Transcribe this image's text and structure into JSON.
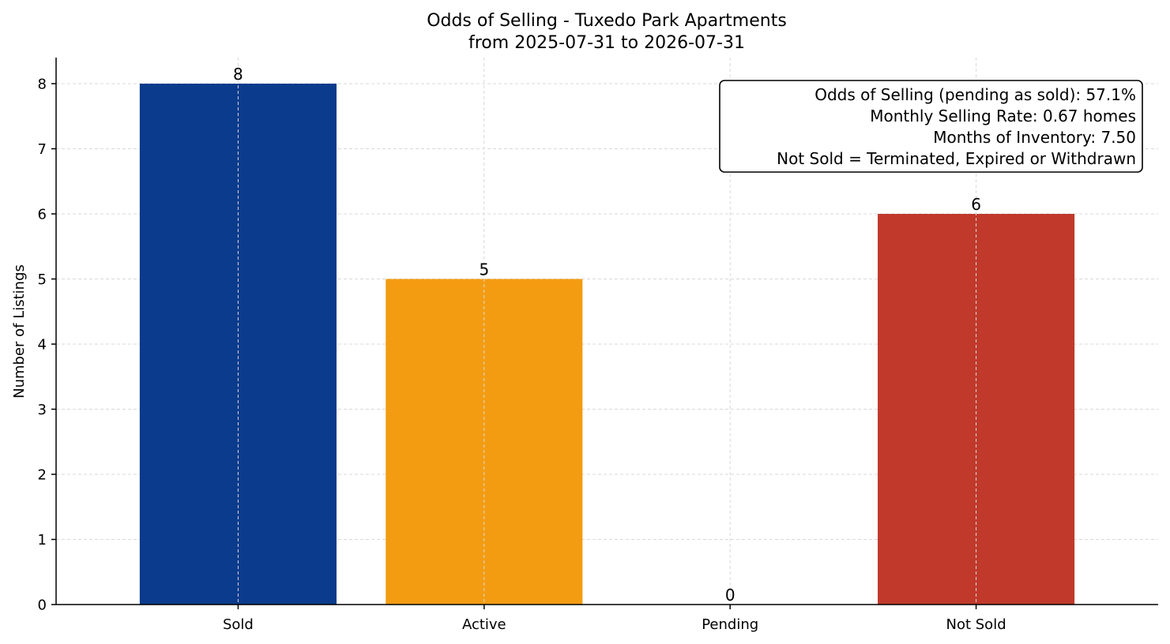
{
  "chart_data": {
    "type": "bar",
    "title": "Odds of Selling - Tuxedo Park Apartments",
    "subtitle": "from 2025-07-31 to 2026-07-31",
    "xlabel": "",
    "ylabel": "Number of Listings",
    "categories": [
      "Sold",
      "Active",
      "Pending",
      "Not Sold"
    ],
    "values": [
      8,
      5,
      0,
      6
    ],
    "data_labels": [
      "8",
      "5",
      "0",
      "6"
    ],
    "colors": [
      "#0b3b8c",
      "#f39c12",
      "#2a9d8f",
      "#c0392b"
    ],
    "ylim": [
      0,
      8.4
    ],
    "yticks": [
      0,
      1,
      2,
      3,
      4,
      5,
      6,
      7,
      8
    ],
    "ytick_labels": [
      "0",
      "1",
      "2",
      "3",
      "4",
      "5",
      "6",
      "7",
      "8"
    ],
    "grid": true,
    "legend": "none",
    "annotation": {
      "placement": "top-right",
      "lines": [
        "Odds of Selling (pending as sold): 57.1%",
        "Monthly Selling Rate: 0.67 homes",
        "Months of Inventory: 7.50",
        "Not Sold = Terminated, Expired or Withdrawn"
      ]
    }
  }
}
